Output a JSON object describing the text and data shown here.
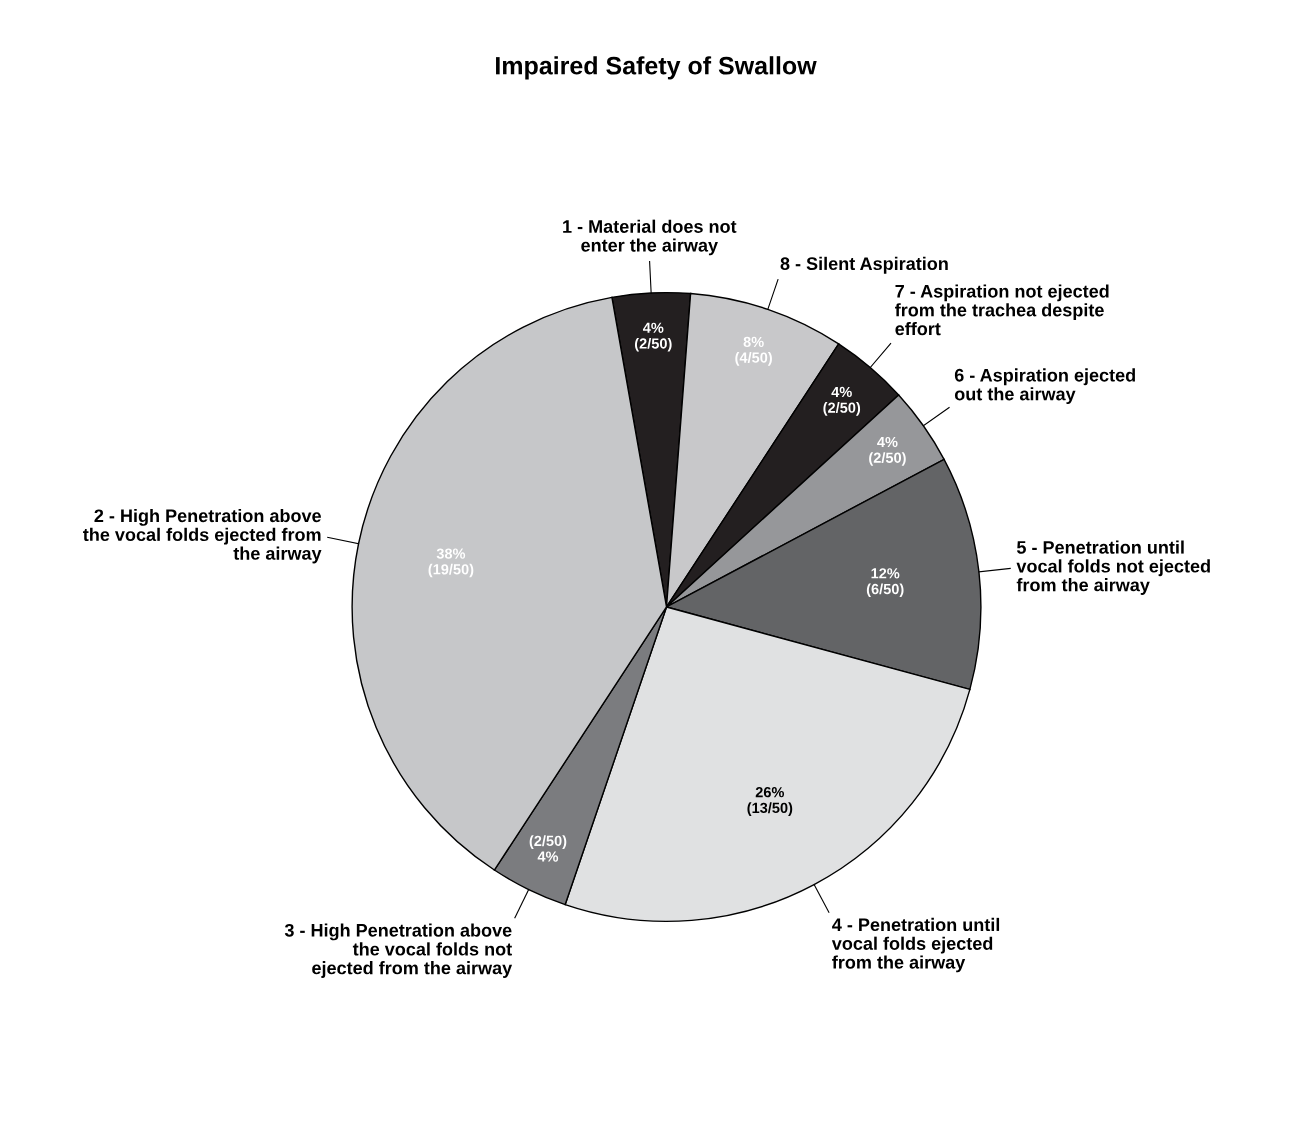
{
  "chart_data": {
    "type": "pie",
    "title": "Impaired Safety of Swallow",
    "categories": [
      "1 - Material does not\nenter the airway",
      "8 - Silent Aspiration",
      "7 - Aspiration not ejected\nfrom the trachea despite\neffort",
      "6 - Aspiration ejected\nout the airway",
      "5 - Penetration until\nvocal folds not ejected\nfrom the airway",
      "4 - Penetration until\nvocal folds ejected\nfrom the airway",
      "3 - High Penetration above\nthe vocal folds not\nejected from the airway",
      "2 - High Penetration above\nthe vocal folds ejected from\nthe airway"
    ],
    "values": [
      4,
      8,
      4,
      4,
      12,
      26,
      4,
      38
    ],
    "value_labels": [
      "4%\n(2/50)",
      "8%\n(4/50)",
      "4%\n(2/50)",
      "4%\n(2/50)",
      "12%\n(6/50)",
      "26%\n(13/50)",
      "(2/50)\n4%",
      "38%\n(19/50)"
    ],
    "colors": [
      "#231f20",
      "#c8c8ca",
      "#231f20",
      "#96979a",
      "#636466",
      "#e0e1e2",
      "#7b7c7f",
      "#c6c7c9"
    ]
  }
}
